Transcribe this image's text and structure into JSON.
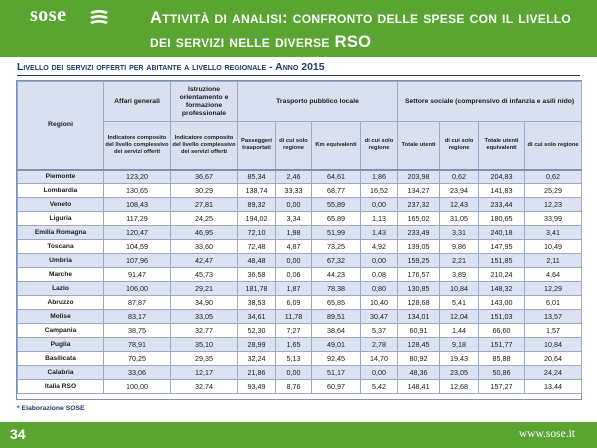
{
  "logo": {
    "text": "sose",
    "icon": "sose-logo-mark-icon"
  },
  "title": "Attività di analisi: confronto delle spese con il livello dei servizi nelle diverse RSO",
  "subtitle": "Livello dei servizi offerti per abitante a livello regionale - Anno 2015",
  "table": {
    "region_header": "Regioni",
    "groups": [
      "Affari generali",
      "Istruzione orientamento e formazione professionale",
      "Trasporto pubblico locale",
      "Settore sociale (comprensivo di infanzia e asili nido)"
    ],
    "subheaders": [
      "Indicatore composito del livello complessivo dei servizi offerti",
      "Indicatore composito del livello complessivo dei servizi offerti",
      "Passeggeri trasportati",
      "di cui solo regione",
      "Km equivalenti",
      "di cui solo regione",
      "Totale utenti",
      "di cui solo regione",
      "Totale utenti equivalenti",
      "di cui solo regione"
    ],
    "rows": [
      [
        "Piemonte",
        "123,20",
        "36,67",
        "85,34",
        "2,46",
        "64,61",
        "1,86",
        "203,98",
        "0,62",
        "204,83",
        "0,62"
      ],
      [
        "Lombardia",
        "130,65",
        "30,29",
        "138,74",
        "33,33",
        "68,77",
        "16,52",
        "134,27",
        "23,94",
        "141,83",
        "25,29"
      ],
      [
        "Veneto",
        "108,43",
        "27,81",
        "89,32",
        "0,00",
        "55,89",
        "0,00",
        "237,32",
        "12,43",
        "233,44",
        "12,23"
      ],
      [
        "Liguria",
        "117,29",
        "24,25",
        "194,02",
        "3,34",
        "65,89",
        "1,13",
        "165,02",
        "31,05",
        "180,65",
        "33,99"
      ],
      [
        "Emilia Romagna",
        "120,47",
        "46,95",
        "72,10",
        "1,98",
        "51,99",
        "1,43",
        "233,49",
        "3,31",
        "240,18",
        "3,41"
      ],
      [
        "Toscana",
        "104,59",
        "33,60",
        "72,48",
        "4,87",
        "73,25",
        "4,92",
        "139,05",
        "9,86",
        "147,95",
        "10,49"
      ],
      [
        "Umbria",
        "107,96",
        "42,47",
        "48,48",
        "0,00",
        "67,32",
        "0,00",
        "159,25",
        "2,21",
        "151,85",
        "2,11"
      ],
      [
        "Marche",
        "91,47",
        "45,73",
        "36,58",
        "0,06",
        "44,23",
        "0,08",
        "176,57",
        "3,89",
        "210,24",
        "4,64"
      ],
      [
        "Lazio",
        "106,00",
        "29,21",
        "181,78",
        "1,87",
        "78,38",
        "0,80",
        "130,85",
        "10,84",
        "148,32",
        "12,29"
      ],
      [
        "Abruzzo",
        "87,87",
        "34,90",
        "38,53",
        "6,09",
        "65,85",
        "10,40",
        "128,68",
        "5,41",
        "143,00",
        "6,01"
      ],
      [
        "Molise",
        "83,17",
        "33,05",
        "34,61",
        "11,78",
        "89,51",
        "30,47",
        "134,01",
        "12,04",
        "151,03",
        "13,57"
      ],
      [
        "Campania",
        "38,75",
        "32,77",
        "52,30",
        "7,27",
        "38,64",
        "5,37",
        "60,91",
        "1,44",
        "66,60",
        "1,57"
      ],
      [
        "Puglia",
        "78,91",
        "35,10",
        "28,99",
        "1,65",
        "49,01",
        "2,78",
        "128,45",
        "9,18",
        "151,77",
        "10,84"
      ],
      [
        "Basilicata",
        "70,25",
        "29,35",
        "32,24",
        "5,13",
        "92,45",
        "14,70",
        "80,92",
        "19,43",
        "85,88",
        "20,64"
      ],
      [
        "Calabria",
        "33,06",
        "12,17",
        "21,86",
        "0,00",
        "51,17",
        "0,00",
        "48,36",
        "23,05",
        "50,86",
        "24,24"
      ],
      [
        "Italia RSO",
        "100,00",
        "32,74",
        "93,49",
        "8,76",
        "60,97",
        "5,42",
        "148,41",
        "12,68",
        "157,27",
        "13,44"
      ]
    ]
  },
  "note": "* Elaborazione SOSE",
  "footer": {
    "page_number": "34",
    "site": "www.sose.it"
  },
  "colors": {
    "brand_green": "#5aa532",
    "header_fill": "#d9e1f1",
    "band_fill": "#dbe3f3",
    "navy": "#1d3b64"
  }
}
